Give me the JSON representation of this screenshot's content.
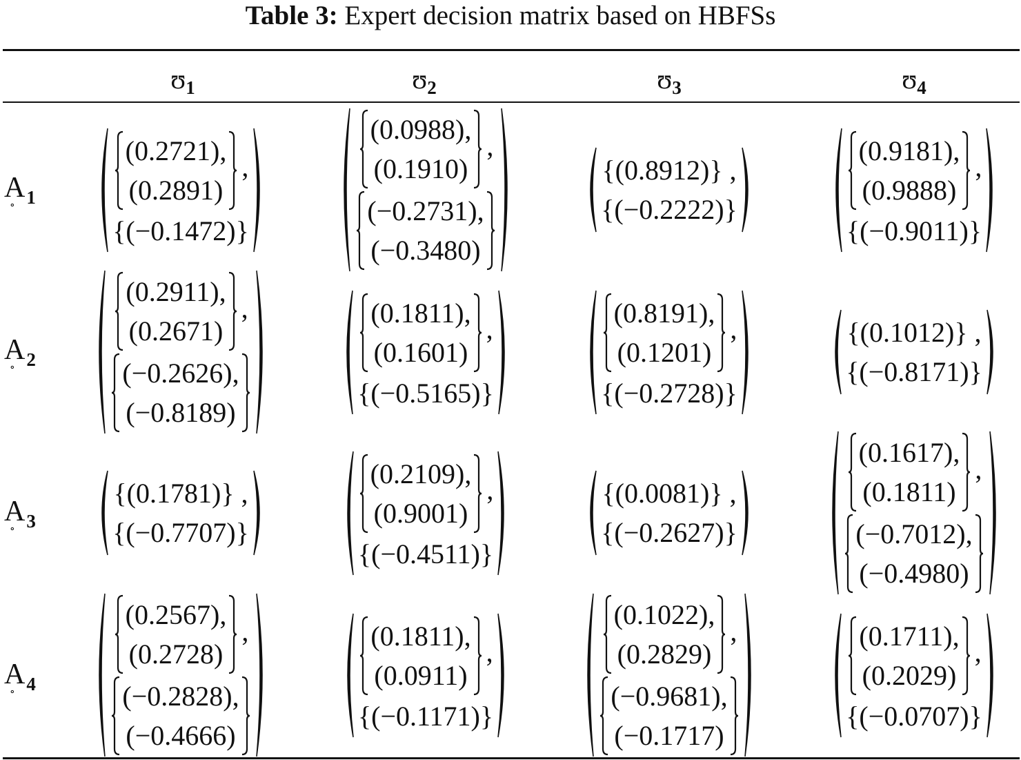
{
  "caption": {
    "label": "Table 3:",
    "text": "Expert decision matrix based on HBFSs"
  },
  "columns": [
    {
      "symbol": "ʊ",
      "sub": "1"
    },
    {
      "symbol": "ʊ",
      "sub": "2"
    },
    {
      "symbol": "ʊ",
      "sub": "3"
    },
    {
      "symbol": "ʊ",
      "sub": "4"
    }
  ],
  "rows": [
    {
      "label": "A",
      "sub": "1"
    },
    {
      "label": "A",
      "sub": "2"
    },
    {
      "label": "A",
      "sub": "3"
    },
    {
      "label": "A",
      "sub": "4"
    }
  ],
  "cells": [
    [
      {
        "pos": [
          "(0.2721),",
          "(0.2891)"
        ],
        "neg": [
          "(−0.1472)"
        ]
      },
      {
        "pos": [
          "(0.0988),",
          "(0.1910)"
        ],
        "neg": [
          "(−0.2731),",
          "(−0.3480)"
        ]
      },
      {
        "pos": [
          "(0.8912)"
        ],
        "neg": [
          "(−0.2222)"
        ]
      },
      {
        "pos": [
          "(0.9181),",
          "(0.9888)"
        ],
        "neg": [
          "(−0.9011)"
        ]
      }
    ],
    [
      {
        "pos": [
          "(0.2911),",
          "(0.2671)"
        ],
        "neg": [
          "(−0.2626),",
          "(−0.8189)"
        ]
      },
      {
        "pos": [
          "(0.1811),",
          "(0.1601)"
        ],
        "neg": [
          "(−0.5165)"
        ]
      },
      {
        "pos": [
          "(0.8191),",
          "(0.1201)"
        ],
        "neg": [
          "(−0.2728)"
        ]
      },
      {
        "pos": [
          "(0.1012)"
        ],
        "neg": [
          "(−0.8171)"
        ]
      }
    ],
    [
      {
        "pos": [
          "(0.1781)"
        ],
        "neg": [
          "(−0.7707)"
        ]
      },
      {
        "pos": [
          "(0.2109),",
          "(0.9001)"
        ],
        "neg": [
          "(−0.4511)"
        ]
      },
      {
        "pos": [
          "(0.0081)"
        ],
        "neg": [
          "(−0.2627)"
        ]
      },
      {
        "pos": [
          "(0.1617),",
          "(0.1811)"
        ],
        "neg": [
          "(−0.7012),",
          "(−0.4980)"
        ]
      }
    ],
    [
      {
        "pos": [
          "(0.2567),",
          "(0.2728)"
        ],
        "neg": [
          "(−0.2828),",
          "(−0.4666)"
        ]
      },
      {
        "pos": [
          "(0.1811),",
          "(0.0911)"
        ],
        "neg": [
          "(−0.1171)"
        ]
      },
      {
        "pos": [
          "(0.1022),",
          "(0.2829)"
        ],
        "neg": [
          "(−0.9681),",
          "(−0.1717)"
        ]
      },
      {
        "pos": [
          "(0.1711),",
          "(0.2029)"
        ],
        "neg": [
          "(−0.0707)"
        ]
      }
    ]
  ]
}
